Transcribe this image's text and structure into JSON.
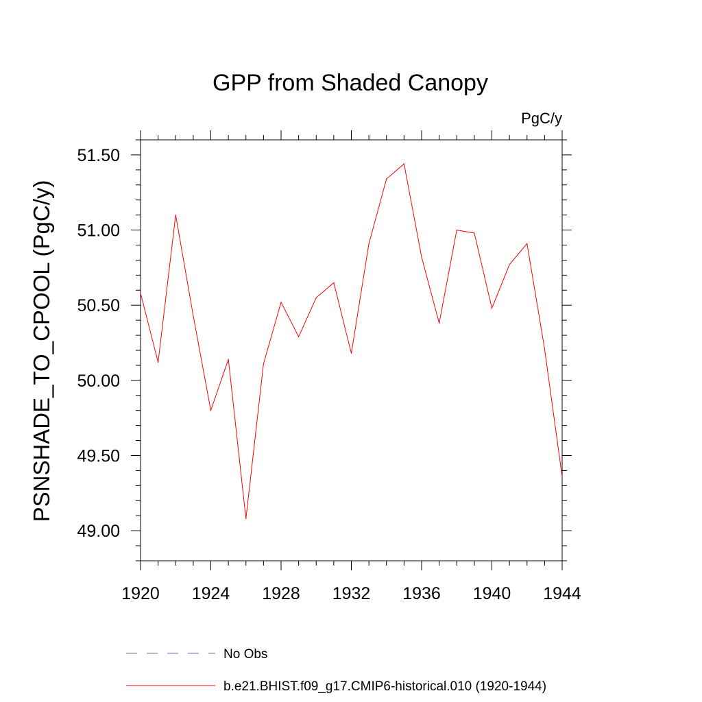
{
  "chart_data": {
    "type": "line",
    "title": "GPP from Shaded Canopy",
    "units": "PgC/y",
    "ylabel": "PSNSHADE_TO_CPOOL  (PgC/y)",
    "xlabel": "",
    "xlim": [
      1920,
      1944
    ],
    "ylim": [
      48.8,
      51.6
    ],
    "x_ticks": [
      1920,
      1924,
      1928,
      1932,
      1936,
      1940,
      1944
    ],
    "x_tick_labels": [
      "1920",
      "1924",
      "1928",
      "1932",
      "1936",
      "1940",
      "1944"
    ],
    "y_ticks": [
      49.0,
      49.5,
      50.0,
      50.5,
      51.0,
      51.5
    ],
    "y_tick_labels": [
      "49.00",
      "49.50",
      "50.00",
      "50.50",
      "51.00",
      "51.50"
    ],
    "grid": false,
    "series": [
      {
        "name": "b.e21.BHIST.f09_g17.CMIP6-historical.010 (1920-1944)",
        "color": "#ff0000",
        "x": [
          1920,
          1921,
          1922,
          1923,
          1924,
          1925,
          1926,
          1927,
          1928,
          1929,
          1930,
          1931,
          1932,
          1933,
          1934,
          1935,
          1936,
          1937,
          1938,
          1939,
          1940,
          1941,
          1942,
          1943,
          1944
        ],
        "values": [
          50.58,
          50.12,
          51.1,
          50.43,
          49.8,
          50.14,
          49.08,
          50.11,
          50.52,
          50.29,
          50.55,
          50.65,
          50.18,
          50.91,
          51.34,
          51.44,
          50.82,
          50.38,
          51.0,
          50.98,
          50.48,
          50.77,
          50.91,
          50.21,
          49.36
        ]
      }
    ],
    "legend": {
      "position": "bottom-left",
      "entries": [
        {
          "label": "No Obs",
          "color": "#6666aa",
          "style": "dashed"
        },
        {
          "label": "b.e21.BHIST.f09_g17.CMIP6-historical.010 (1920-1944)",
          "color": "#ff0000",
          "style": "solid"
        }
      ]
    }
  }
}
